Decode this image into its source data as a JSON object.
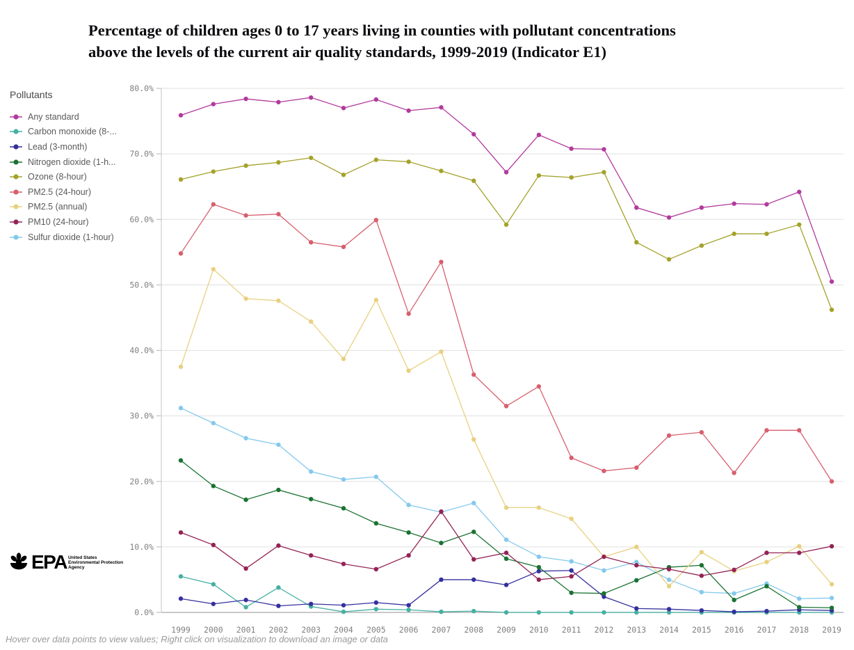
{
  "title": {
    "line1": "Percentage of children ages 0 to 17 years living in counties with pollutant concentrations",
    "line2": "above the levels of the current air quality standards, 1999-2019 (Indicator E1)"
  },
  "legend": {
    "title": "Pollutants",
    "items": [
      {
        "label": "Any standard",
        "color": "#b23a9c"
      },
      {
        "label": "Carbon monoxide (8-...",
        "color": "#45b0a2"
      },
      {
        "label": "Lead (3-month)",
        "color": "#35309f"
      },
      {
        "label": "Nitrogen dioxide (1-h...",
        "color": "#1a7232"
      },
      {
        "label": "Ozone (8-hour)",
        "color": "#a4a22b"
      },
      {
        "label": "PM2.5 (24-hour)",
        "color": "#d75f6e"
      },
      {
        "label": "PM2.5 (annual)",
        "color": "#e8d080"
      },
      {
        "label": "PM10 (24-hour)",
        "color": "#942355"
      },
      {
        "label": "Sulfur dioxide (1-hour)",
        "color": "#84c9ec"
      }
    ]
  },
  "chart_data": {
    "type": "line",
    "title": "Percentage of children ages 0 to 17 years living in counties with pollutant concentrations above the levels of the current air quality standards, 1999-2019 (Indicator E1)",
    "xlabel": "",
    "ylabel": "",
    "ylim": [
      0,
      80
    ],
    "grid": true,
    "legend_position": "left",
    "yticks": [
      "0.0%",
      "10.0%",
      "20.0%",
      "30.0%",
      "40.0%",
      "50.0%",
      "60.0%",
      "70.0%",
      "80.0%"
    ],
    "x": [
      1999,
      2000,
      2001,
      2002,
      2003,
      2004,
      2005,
      2006,
      2007,
      2008,
      2009,
      2010,
      2011,
      2012,
      2013,
      2014,
      2015,
      2016,
      2017,
      2018,
      2019
    ],
    "series": [
      {
        "name": "Any standard",
        "color": "#b23a9c",
        "values": [
          75.9,
          77.6,
          78.4,
          77.9,
          78.6,
          77.0,
          78.3,
          76.6,
          77.1,
          73.0,
          67.2,
          72.9,
          70.8,
          70.7,
          61.8,
          60.3,
          61.8,
          62.4,
          62.3,
          64.2,
          50.5
        ]
      },
      {
        "name": "Carbon monoxide (8-...",
        "color": "#45b0a2",
        "values": [
          5.5,
          4.3,
          0.8,
          3.8,
          0.9,
          0.1,
          0.5,
          0.4,
          0.1,
          0.2,
          0.0,
          0.0,
          0.0,
          0.0,
          0.0,
          0.0,
          0.0,
          0.0,
          0.0,
          0.0,
          0.0
        ]
      },
      {
        "name": "Lead (3-month)",
        "color": "#35309f",
        "values": [
          2.1,
          1.3,
          1.9,
          1.0,
          1.3,
          1.1,
          1.5,
          1.1,
          5.0,
          5.0,
          4.2,
          6.3,
          6.4,
          2.4,
          0.6,
          0.5,
          0.3,
          0.1,
          0.2,
          0.4,
          0.3
        ]
      },
      {
        "name": "Nitrogen dioxide (1-h...",
        "color": "#1a7232",
        "values": [
          23.2,
          19.3,
          17.2,
          18.7,
          17.3,
          15.9,
          13.6,
          12.2,
          10.6,
          12.3,
          8.2,
          6.9,
          3.0,
          2.9,
          4.9,
          6.9,
          7.2,
          1.9,
          4.0,
          0.8,
          0.7
        ]
      },
      {
        "name": "Ozone (8-hour)",
        "color": "#a4a22b",
        "values": [
          66.1,
          67.3,
          68.2,
          68.7,
          69.4,
          66.8,
          69.1,
          68.8,
          67.4,
          65.9,
          59.2,
          66.7,
          66.4,
          67.2,
          56.5,
          53.9,
          56.0,
          57.8,
          57.8,
          59.2,
          46.2
        ]
      },
      {
        "name": "PM2.5 (24-hour)",
        "color": "#d75f6e",
        "values": [
          54.8,
          62.3,
          60.6,
          60.8,
          56.5,
          55.8,
          59.9,
          45.6,
          53.5,
          36.3,
          31.5,
          34.5,
          23.6,
          21.6,
          22.1,
          27.0,
          27.5,
          21.3,
          27.8,
          27.8,
          20.0
        ]
      },
      {
        "name": "PM2.5 (annual)",
        "color": "#e8d080",
        "values": [
          37.5,
          52.4,
          47.9,
          47.6,
          44.4,
          38.7,
          47.7,
          36.9,
          39.8,
          26.4,
          16.0,
          16.0,
          14.3,
          8.5,
          10.0,
          4.0,
          9.2,
          6.3,
          7.7,
          10.1,
          4.3
        ]
      },
      {
        "name": "PM10 (24-hour)",
        "color": "#942355",
        "values": [
          12.2,
          10.3,
          6.7,
          10.2,
          8.7,
          7.4,
          6.6,
          8.7,
          15.4,
          8.1,
          9.1,
          5.0,
          5.5,
          8.5,
          7.2,
          6.6,
          5.6,
          6.5,
          9.1,
          9.1,
          10.1
        ]
      },
      {
        "name": "Sulfur dioxide (1-hour)",
        "color": "#84c9ec",
        "values": [
          31.2,
          28.9,
          26.6,
          25.6,
          21.5,
          20.3,
          20.7,
          16.4,
          15.3,
          16.7,
          11.1,
          8.5,
          7.8,
          6.4,
          7.7,
          5.0,
          3.1,
          2.9,
          4.4,
          2.1,
          2.2
        ]
      }
    ],
    "colors": {
      "gridline": "#e0e0e0",
      "zero_line": "#a6a6a6",
      "axis_line": "#c6c6c6",
      "tick_label": "#7f7f7f"
    }
  },
  "footer": {
    "note": "Hover over data points to view values; Right click on visualization to download an image or data"
  },
  "logo": {
    "org": "EPA",
    "lines": [
      "United States",
      "Environmental Protection",
      "Agency"
    ]
  }
}
